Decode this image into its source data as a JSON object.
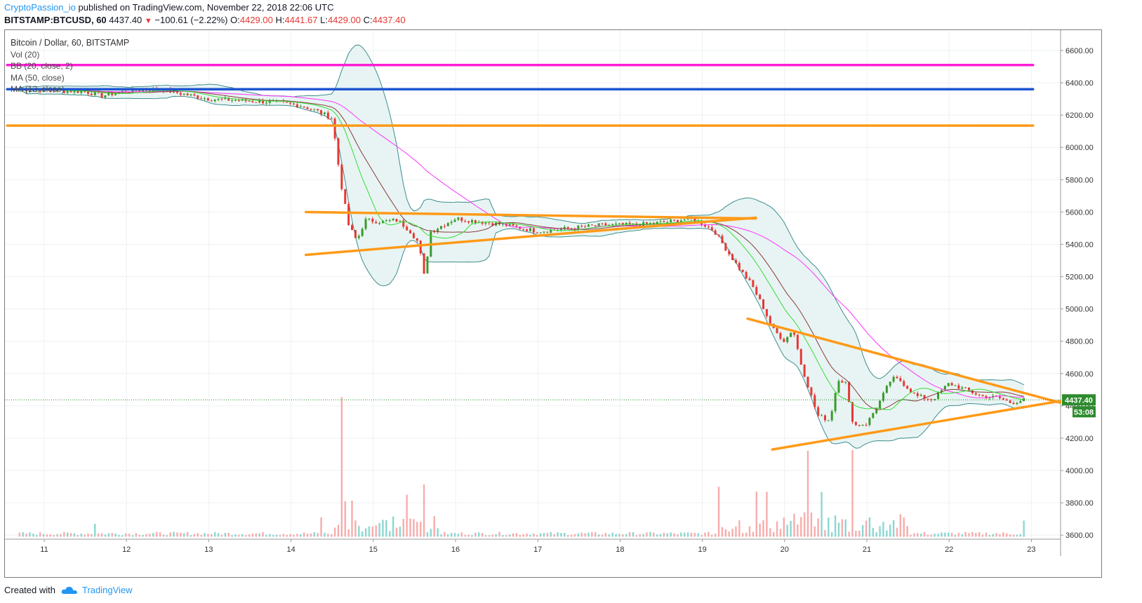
{
  "header": {
    "author": "CryptoPassion_io",
    "published_text": " published on TradingView.com, November 22, 2018 22:06 UTC",
    "symbol_line": "BITSTAMP:BTCUSD, 60",
    "last": "4437.40",
    "change": "−100.61 (−2.22%)",
    "o_label": "O:",
    "o_value": "4429.00",
    "h_label": "H:",
    "h_value": "4441.67",
    "l_label": "L:",
    "l_value": "4429.00",
    "c_label": "C:",
    "c_value": "4437.40"
  },
  "legend": {
    "title": "Bitcoin / Dollar, 60, BITSTAMP",
    "items": [
      "Vol (20)",
      "BB (20, close, 2)",
      "MA (50, close)",
      "MA (13, close)"
    ]
  },
  "footer": {
    "created_with": "Created with",
    "brand": "TradingView"
  },
  "colors": {
    "up": "#3a9a2a",
    "down": "#e53935",
    "bb": "#3d8d8d",
    "bb_fill": "#e8f4f4",
    "ma50": "#ff33ff",
    "ma13": "#33dd33",
    "ma_inner": "#8b3a3a",
    "resistance_magenta": "#ff1ed4",
    "resistance_blue": "#1e55d0",
    "support_orange": "#ff9a18",
    "grid": "#eef0f3",
    "price_tag": "#2e8b2e"
  },
  "chart_data": {
    "type": "candlestick",
    "title": "Bitcoin / Dollar, 60, BITSTAMP",
    "y_ticks": [
      "6600.00",
      "6400.00",
      "6200.00",
      "6000.00",
      "5800.00",
      "5600.00",
      "5400.00",
      "5200.00",
      "5000.00",
      "4800.00",
      "4600.00",
      "4400.00",
      "4200.00",
      "4000.00",
      "3800.00",
      "3600.00"
    ],
    "x_ticks": [
      "11",
      "12",
      "13",
      "14",
      "15",
      "16",
      "17",
      "18",
      "19",
      "20",
      "21",
      "22",
      "23"
    ],
    "ylim": [
      3590,
      6720
    ],
    "last_price": "4437.40",
    "countdown": "53:08",
    "close_path": [
      [
        10.7,
        6360
      ],
      [
        11.0,
        6355
      ],
      [
        11.5,
        6345
      ],
      [
        11.7,
        6320
      ],
      [
        12.0,
        6350
      ],
      [
        12.4,
        6360
      ],
      [
        12.8,
        6320
      ],
      [
        13.0,
        6300
      ],
      [
        13.4,
        6290
      ],
      [
        13.8,
        6280
      ],
      [
        14.1,
        6260
      ],
      [
        14.3,
        6230
      ],
      [
        14.5,
        6180
      ],
      [
        14.6,
        5800
      ],
      [
        14.7,
        5520
      ],
      [
        14.8,
        5420
      ],
      [
        14.9,
        5550
      ],
      [
        15.1,
        5540
      ],
      [
        15.3,
        5550
      ],
      [
        15.45,
        5480
      ],
      [
        15.55,
        5410
      ],
      [
        15.62,
        5200
      ],
      [
        15.7,
        5480
      ],
      [
        15.85,
        5520
      ],
      [
        16.0,
        5560
      ],
      [
        16.3,
        5540
      ],
      [
        16.6,
        5520
      ],
      [
        17.0,
        5480
      ],
      [
        17.4,
        5500
      ],
      [
        17.8,
        5520
      ],
      [
        18.2,
        5520
      ],
      [
        18.6,
        5540
      ],
      [
        18.85,
        5560
      ],
      [
        19.0,
        5530
      ],
      [
        19.15,
        5480
      ],
      [
        19.3,
        5360
      ],
      [
        19.45,
        5250
      ],
      [
        19.6,
        5150
      ],
      [
        19.75,
        5000
      ],
      [
        19.85,
        4880
      ],
      [
        20.0,
        4800
      ],
      [
        20.1,
        4880
      ],
      [
        20.2,
        4660
      ],
      [
        20.3,
        4500
      ],
      [
        20.4,
        4340
      ],
      [
        20.55,
        4310
      ],
      [
        20.65,
        4570
      ],
      [
        20.75,
        4540
      ],
      [
        20.8,
        4350
      ],
      [
        20.85,
        4280
      ],
      [
        21.0,
        4290
      ],
      [
        21.15,
        4420
      ],
      [
        21.3,
        4570
      ],
      [
        21.4,
        4560
      ],
      [
        21.6,
        4460
      ],
      [
        21.8,
        4440
      ],
      [
        22.0,
        4540
      ],
      [
        22.2,
        4500
      ],
      [
        22.4,
        4460
      ],
      [
        22.6,
        4450
      ],
      [
        22.75,
        4420
      ],
      [
        22.9,
        4437
      ]
    ],
    "volume_spikes": [
      [
        11.62,
        3670
      ],
      [
        14.38,
        3710
      ],
      [
        14.62,
        4350
      ],
      [
        14.66,
        3750
      ],
      [
        14.74,
        3730
      ],
      [
        15.4,
        3800
      ],
      [
        15.6,
        3860
      ],
      [
        19.2,
        3850
      ],
      [
        19.65,
        3760
      ],
      [
        19.8,
        3750
      ],
      [
        20.3,
        4110
      ],
      [
        20.82,
        4040
      ],
      [
        20.45,
        3780
      ],
      [
        22.9,
        3690
      ]
    ],
    "lines": [
      {
        "name": "",
        "kind": "horizontal",
        "y": 6510,
        "x0": 10.55,
        "x1": 23.02
      },
      {
        "name": "",
        "kind": "horizontal",
        "y": 6360,
        "x0": 10.55,
        "x1": 23.02
      },
      {
        "name": "",
        "kind": "horizontal",
        "y": 6135,
        "x0": 10.55,
        "x1": 23.02
      },
      {
        "name": "",
        "kind": "trend",
        "p1": [
          14.18,
          5600
        ],
        "p2": [
          19.65,
          5560
        ]
      },
      {
        "name": "",
        "kind": "trend",
        "p1": [
          14.18,
          5335
        ],
        "p2": [
          19.65,
          5565
        ]
      },
      {
        "name": "",
        "kind": "trend",
        "p1": [
          19.55,
          4940
        ],
        "p2": [
          23.35,
          4420
        ]
      },
      {
        "name": "",
        "kind": "trend",
        "p1": [
          19.85,
          4130
        ],
        "p2": [
          23.35,
          4430
        ]
      }
    ]
  }
}
